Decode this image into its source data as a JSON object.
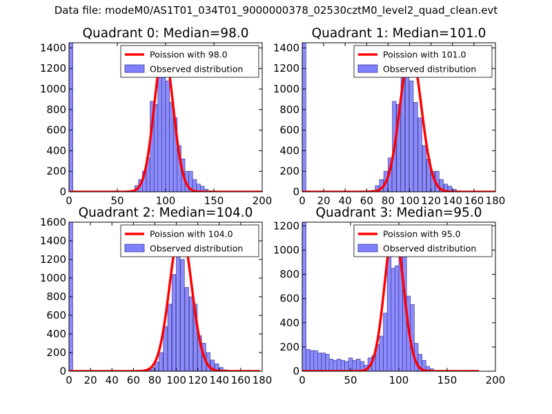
{
  "figure": {
    "title": "Data file: modeM0/AS1T01_034T01_9000000378_02530cztM0_level2_quad_clean.evt"
  },
  "colors": {
    "bar_fill": "#8080ff",
    "bar_stroke": "#3a3a8c",
    "poisson_line": "#ff0000",
    "axis": "#000000"
  },
  "chart_data": [
    {
      "type": "bar",
      "title": "Quadrant 0: Median=98.0",
      "legend": {
        "placement": "top-right",
        "line_label": "Poission with 98.0",
        "bar_label": "Observed distribution"
      },
      "xlim": [
        0,
        200
      ],
      "ylim": [
        0,
        1450
      ],
      "xticks": [
        0,
        50,
        100,
        150,
        200
      ],
      "yticks": [
        0,
        200,
        400,
        600,
        800,
        1000,
        1200,
        1400
      ],
      "bin_width": 4,
      "bins": [
        [
          0,
          1450
        ],
        [
          60,
          10
        ],
        [
          64,
          15
        ],
        [
          68,
          60
        ],
        [
          72,
          120
        ],
        [
          76,
          200
        ],
        [
          80,
          330
        ],
        [
          84,
          880
        ],
        [
          88,
          850
        ],
        [
          92,
          1150
        ],
        [
          96,
          1300
        ],
        [
          100,
          1080
        ],
        [
          104,
          870
        ],
        [
          108,
          720
        ],
        [
          112,
          450
        ],
        [
          116,
          320
        ],
        [
          120,
          200
        ],
        [
          124,
          200
        ],
        [
          128,
          120
        ],
        [
          132,
          75
        ],
        [
          136,
          55
        ],
        [
          140,
          25
        ],
        [
          144,
          10
        ],
        [
          148,
          5
        ]
      ],
      "poisson_mean": 98,
      "poisson_peak": 1370,
      "poisson_sigma": 9.9,
      "poisson_range": [
        0,
        200
      ]
    },
    {
      "type": "bar",
      "title": "Quadrant 1: Median=101.0",
      "legend": {
        "placement": "top-right",
        "line_label": "Poission with 101.0",
        "bar_label": "Observed distribution"
      },
      "xlim": [
        0,
        180
      ],
      "ylim": [
        0,
        1450
      ],
      "xticks": [
        0,
        20,
        40,
        60,
        80,
        100,
        120,
        140,
        160,
        180
      ],
      "yticks": [
        0,
        200,
        400,
        600,
        800,
        1000,
        1200,
        1400
      ],
      "bin_width": 3.5,
      "bins": [
        [
          0,
          1450
        ],
        [
          60,
          10
        ],
        [
          64,
          15
        ],
        [
          68,
          60
        ],
        [
          72,
          120
        ],
        [
          76,
          200
        ],
        [
          80,
          330
        ],
        [
          84,
          880
        ],
        [
          88,
          850
        ],
        [
          92,
          1150
        ],
        [
          96,
          1300
        ],
        [
          100,
          1080
        ],
        [
          104,
          870
        ],
        [
          108,
          720
        ],
        [
          112,
          450
        ],
        [
          116,
          320
        ],
        [
          120,
          200
        ],
        [
          124,
          200
        ],
        [
          128,
          120
        ],
        [
          132,
          75
        ],
        [
          136,
          55
        ],
        [
          140,
          25
        ],
        [
          144,
          10
        ],
        [
          148,
          5
        ]
      ],
      "poisson_mean": 101,
      "poisson_peak": 1370,
      "poisson_sigma": 10,
      "poisson_range": [
        0,
        180
      ]
    },
    {
      "type": "bar",
      "title": "Quadrant 2: Median=104.0",
      "legend": {
        "placement": "top-right",
        "line_label": "Poission with 104.0",
        "bar_label": "Observed distribution"
      },
      "xlim": [
        0,
        180
      ],
      "ylim": [
        0,
        1600
      ],
      "xticks": [
        0,
        20,
        40,
        60,
        80,
        100,
        120,
        140,
        160,
        180
      ],
      "yticks": [
        0,
        200,
        400,
        600,
        800,
        1000,
        1200,
        1400,
        1600
      ],
      "bin_width": 3.5,
      "bins": [
        [
          0,
          1600
        ],
        [
          64,
          5
        ],
        [
          68,
          10
        ],
        [
          72,
          20
        ],
        [
          76,
          40
        ],
        [
          80,
          100
        ],
        [
          84,
          200
        ],
        [
          88,
          480
        ],
        [
          92,
          720
        ],
        [
          96,
          1040
        ],
        [
          100,
          1250
        ],
        [
          104,
          1200
        ],
        [
          108,
          900
        ],
        [
          112,
          800
        ],
        [
          116,
          720
        ],
        [
          120,
          380
        ],
        [
          124,
          300
        ],
        [
          128,
          200
        ],
        [
          132,
          120
        ],
        [
          136,
          80
        ],
        [
          140,
          40
        ],
        [
          144,
          15
        ]
      ],
      "poisson_mean": 104,
      "poisson_peak": 1530,
      "poisson_sigma": 10.2,
      "poisson_range": [
        0,
        178
      ]
    },
    {
      "type": "bar",
      "title": "Quadrant 3: Median=95.0",
      "legend": {
        "placement": "top-right",
        "line_label": "Poission with 95.0",
        "bar_label": "Observed distribution"
      },
      "xlim": [
        0,
        200
      ],
      "ylim": [
        0,
        1230
      ],
      "xticks": [
        0,
        50,
        100,
        150,
        200
      ],
      "yticks": [
        0,
        200,
        400,
        600,
        800,
        1000,
        1200
      ],
      "bin_width": 4,
      "bins": [
        [
          0,
          1230
        ],
        [
          4,
          180
        ],
        [
          8,
          170
        ],
        [
          12,
          170
        ],
        [
          16,
          150
        ],
        [
          20,
          150
        ],
        [
          24,
          140
        ],
        [
          28,
          100
        ],
        [
          32,
          90
        ],
        [
          36,
          100
        ],
        [
          40,
          90
        ],
        [
          44,
          80
        ],
        [
          48,
          110
        ],
        [
          52,
          90
        ],
        [
          56,
          100
        ],
        [
          60,
          80
        ],
        [
          64,
          50
        ],
        [
          68,
          110
        ],
        [
          72,
          130
        ],
        [
          76,
          220
        ],
        [
          80,
          290
        ],
        [
          84,
          480
        ],
        [
          88,
          1000
        ],
        [
          92,
          850
        ],
        [
          96,
          870
        ],
        [
          100,
          1150
        ],
        [
          104,
          1000
        ],
        [
          108,
          620
        ],
        [
          112,
          550
        ],
        [
          116,
          230
        ],
        [
          120,
          140
        ],
        [
          124,
          90
        ],
        [
          128,
          40
        ],
        [
          132,
          20
        ]
      ],
      "poisson_mean": 95,
      "poisson_peak": 1180,
      "poisson_sigma": 9.75,
      "poisson_range": [
        0,
        183
      ]
    }
  ]
}
